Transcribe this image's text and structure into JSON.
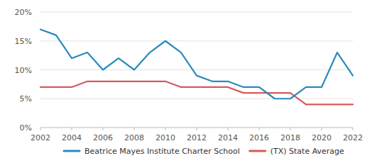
{
  "chart_data": {
    "type": "line",
    "x": [
      2002,
      2003,
      2004,
      2005,
      2006,
      2007,
      2008,
      2009,
      2010,
      2011,
      2012,
      2013,
      2014,
      2015,
      2016,
      2017,
      2018,
      2019,
      2020,
      2021,
      2022
    ],
    "series": [
      {
        "name": "Beatrice Mayes Institute Charter School",
        "color": "#2a8bbf",
        "values": [
          17,
          16,
          12,
          13,
          10,
          12,
          10,
          13,
          15,
          13,
          9,
          8,
          8,
          7,
          7,
          5,
          5,
          7,
          7,
          13,
          9
        ]
      },
      {
        "name": "(TX) State Average",
        "color": "#d9595b",
        "values": [
          7,
          7,
          7,
          8,
          8,
          8,
          8,
          8,
          8,
          7,
          7,
          7,
          7,
          6,
          6,
          6,
          6,
          4,
          4,
          4,
          4
        ]
      }
    ],
    "xlim": [
      2002,
      2022
    ],
    "xticks": [
      2002,
      2004,
      2006,
      2008,
      2010,
      2012,
      2014,
      2016,
      2018,
      2020,
      2022
    ],
    "ylim": [
      0,
      20
    ],
    "yticks": [
      {
        "value": 0,
        "label": "0%"
      },
      {
        "value": 5,
        "label": "5%"
      },
      {
        "value": 10,
        "label": "10%"
      },
      {
        "value": 15,
        "label": "15%"
      },
      {
        "value": 20,
        "label": "20%"
      }
    ],
    "grid": true,
    "legend": "bottom"
  }
}
